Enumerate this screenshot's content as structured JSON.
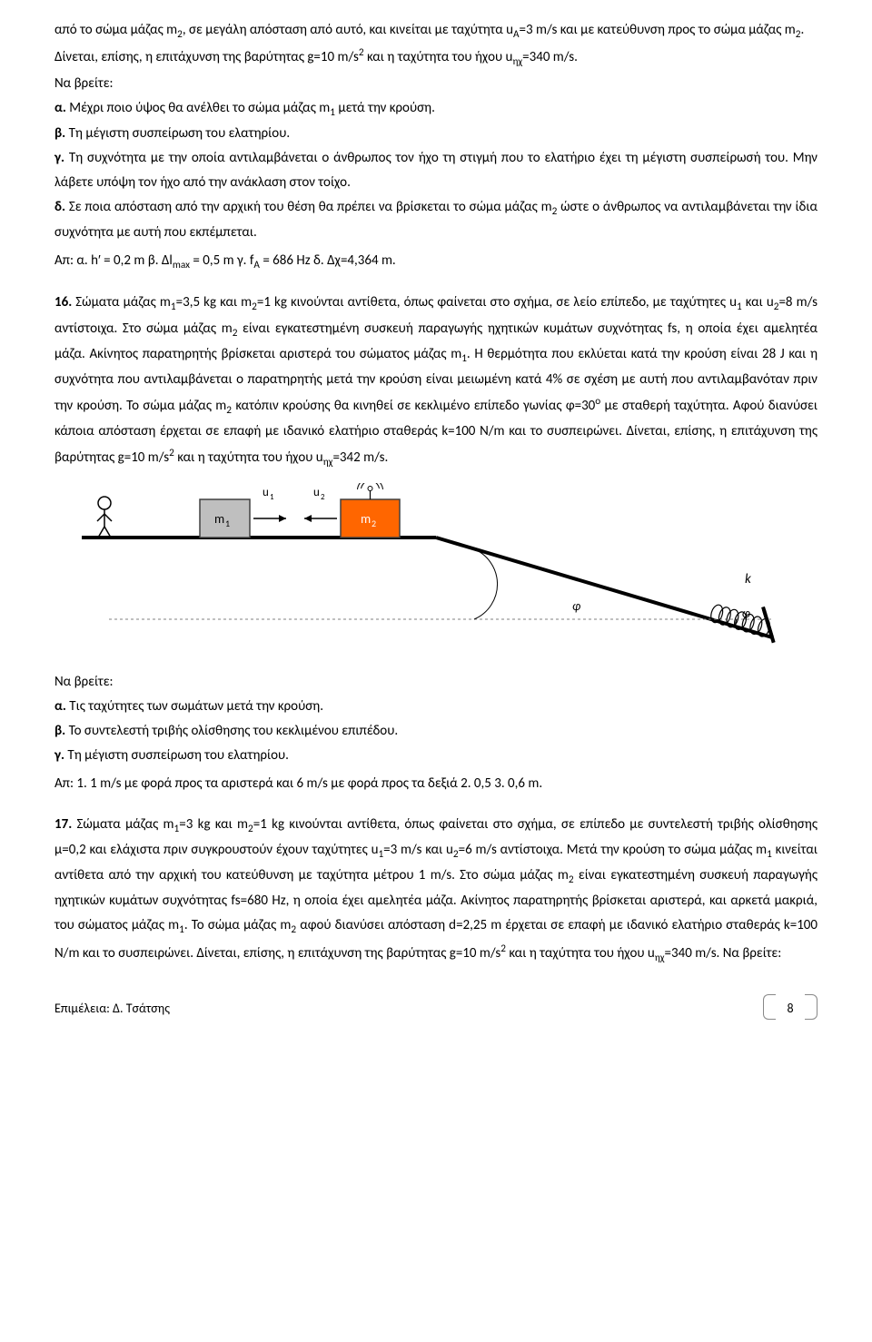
{
  "intro": {
    "line1_a": "από το σώμα μάζας m",
    "line1_sub1": "2",
    "line1_b": ", σε μεγάλη απόσταση από αυτό, και κινείται με ταχύτητα u",
    "line1_sub2": "A",
    "line1_c": "=3 m/s και με κατεύθυνση προς το σώμα μάζας m",
    "line1_sub3": "2",
    "line1_d": ".",
    "line2_a": "Δίνεται, επίσης, η επιτάχυνση της βαρύτητας g=10 m/s",
    "line2_sup": "2",
    "line2_b": "  και η ταχύτητα του ήχου u",
    "line2_sub": "ηχ",
    "line2_c": "=340 m/s.",
    "find": "Να βρείτε:"
  },
  "q15": {
    "a_label": "α.",
    "a_text_a": " Μέχρι ποιο ύψος θα ανέλθει το σώμα μάζας m",
    "a_sub": "1",
    "a_text_b": " μετά την κρούση.",
    "b_label": "β.",
    "b_text": " Τη μέγιστη συσπείρωση του ελατηρίου.",
    "c_label": "γ.",
    "c_text": " Τη συχνότητα με την οποία αντιλαμβάνεται ο άνθρωπος τον ήχο τη στιγμή που το ελατήριο έχει τη μέγιστη συσπείρωσή του. Μην λάβετε υπόψη τον ήχο από την ανάκλαση στον τοίχο.",
    "d_label": "δ.",
    "d_text_a": " Σε ποια απόσταση από την αρχική του θέση θα πρέπει να βρίσκεται το σώμα μάζας m",
    "d_sub": "2",
    "d_text_b": " ώστε ο άνθρωπος να αντιλαμβάνεται την ίδια συχνότητα με αυτή που εκπέμπεται.",
    "ans_a": "Απ: α. ",
    "ans_h": "h′ = 0,2 m",
    "ans_b": "   β. ",
    "ans_dl": "Δl",
    "ans_dl_sub": "max",
    "ans_dl_val": " = 0,5 m",
    "ans_c": "  γ. ",
    "ans_f": "f",
    "ans_f_sub": "A",
    "ans_f_val": " = 686 Hz",
    "ans_d": "   δ. Δχ=4,364 m."
  },
  "q16": {
    "num": "16.",
    "t1": " Σώματα μάζας m",
    "s1": "1",
    "t2": "=3,5 kg και  m",
    "s2": "2",
    "t3": "=1 kg κινούνται αντίθετα, όπως φαίνεται στο σχήμα, σε λείο επίπεδο, με ταχύτητες u",
    "s3": "1",
    "t4": " και u",
    "s4": "2",
    "t5": "=8 m/s αντίστοιχα. Στο σώμα μάζας m",
    "s5": "2",
    "t6": " είναι εγκατεστημένη συσκευή παραγωγής ηχητικών κυμάτων συχνότητας fs, η οποία έχει αμελητέα μάζα. Ακίνητος παρατηρητής βρίσκεται αριστερά του σώματος μάζας m",
    "s6": "1",
    "t7": ". Η θερμότητα που εκλύεται κατά την κρούση είναι 28 J και η συχνότητα που αντιλαμβάνεται ο παρατηρητής μετά την κρούση είναι μειωμένη κατά 4% σε σχέση με αυτή που αντιλαμβανόταν πριν την κρούση.  Το σώμα μάζας m",
    "s7": "2",
    "t8": " κατόπιν κρούσης θα κινηθεί σε κεκλιμένο επίπεδο γωνίας φ=30",
    "sup_o": "ο",
    "t9": " με σταθερή ταχύτητα. Αφού διανύσει κάποια απόσταση έρχεται σε επαφή με ιδανικό ελατήριο σταθεράς k=100 N/m και το συσπειρώνει.  Δίνεται, επίσης, η επιτάχυνση της βαρύτητας g=10 m/s",
    "sup2": "2",
    "t10": "  και η ταχύτητα του ήχου u",
    "s_hx": "ηχ",
    "t11": "=342 m/s.",
    "diagram": {
      "m1_label": "m",
      "m1_sub": "1",
      "m2_label": "m",
      "m2_sub": "2",
      "u1_label": "u",
      "u1_sub": "1",
      "u2_label": "u",
      "u2_sub": "2",
      "k_label": "k",
      "phi_label": "φ",
      "colors": {
        "m1_fill": "#bfbfbf",
        "m1_stroke": "#404040",
        "m2_fill": "#ff6600",
        "m2_stroke": "#404040",
        "ground": "#000000",
        "dashed": "#808080"
      }
    },
    "find": "Να βρείτε:",
    "qa_label": "α.",
    "qa_text": " Τις ταχύτητες των σωμάτων μετά την κρούση.",
    "qb_label": "β.",
    "qb_text": " Το συντελεστή τριβής ολίσθησης του κεκλιμένου επιπέδου.",
    "qc_label": "γ.",
    "qc_text": " Τη μέγιστη συσπείρωση του ελατηρίου.",
    "ans": "Απ: 1. 1 m/s με φορά προς τα αριστερά και 6 m/s με φορά προς τα δεξιά 2. 0,5  3. 0,6 m."
  },
  "q17": {
    "num": "17.",
    "t1": "    Σώματα μάζας m",
    "s1": "1",
    "t2": "=3 kg και  m",
    "s2": "2",
    "t3": "=1 kg κινούνται αντίθετα, όπως φαίνεται στο σχήμα, σε επίπεδο με συντελεστή τριβής ολίσθησης μ=0,2 και ελάχιστα πριν συγκρουστούν έχουν ταχύτητες u",
    "s3": "1",
    "t4": "=3 m/s και u",
    "s4": "2",
    "t5": "=6 m/s αντίστοιχα. Μετά την κρούση το σώμα μάζας m",
    "s5": "1",
    "t6": " κινείται αντίθετα από την αρχική του κατεύθυνση με ταχύτητα μέτρου 1 m/s. Στο σώμα μάζας m",
    "s6": "2",
    "t7": " είναι εγκατεστημένη συσκευή παραγωγής ηχητικών κυμάτων συχνότητας fs=680 Hz, η οποία έχει αμελητέα μάζα. Ακίνητος παρατηρητής βρίσκεται αριστερά, και αρκετά μακριά, του σώματος μάζας m",
    "s7": "1",
    "t8": ". Το σώμα μάζας m",
    "s8": "2",
    "t9": " αφού διανύσει απόσταση d=2,25 m έρχεται σε επαφή με ιδανικό ελατήριο σταθεράς k=100 N/m και το συσπειρώνει. Δίνεται, επίσης, η επιτάχυνση της βαρύτητας g=10 m/s",
    "sup2": "2",
    "t10": "  και η ταχύτητα του ήχου u",
    "s_hx": "ηχ",
    "t11": "=340 m/s. Να βρείτε:"
  },
  "footer": {
    "credit": "Επιμέλεια: Δ. Τσάτσης",
    "page": "8"
  }
}
